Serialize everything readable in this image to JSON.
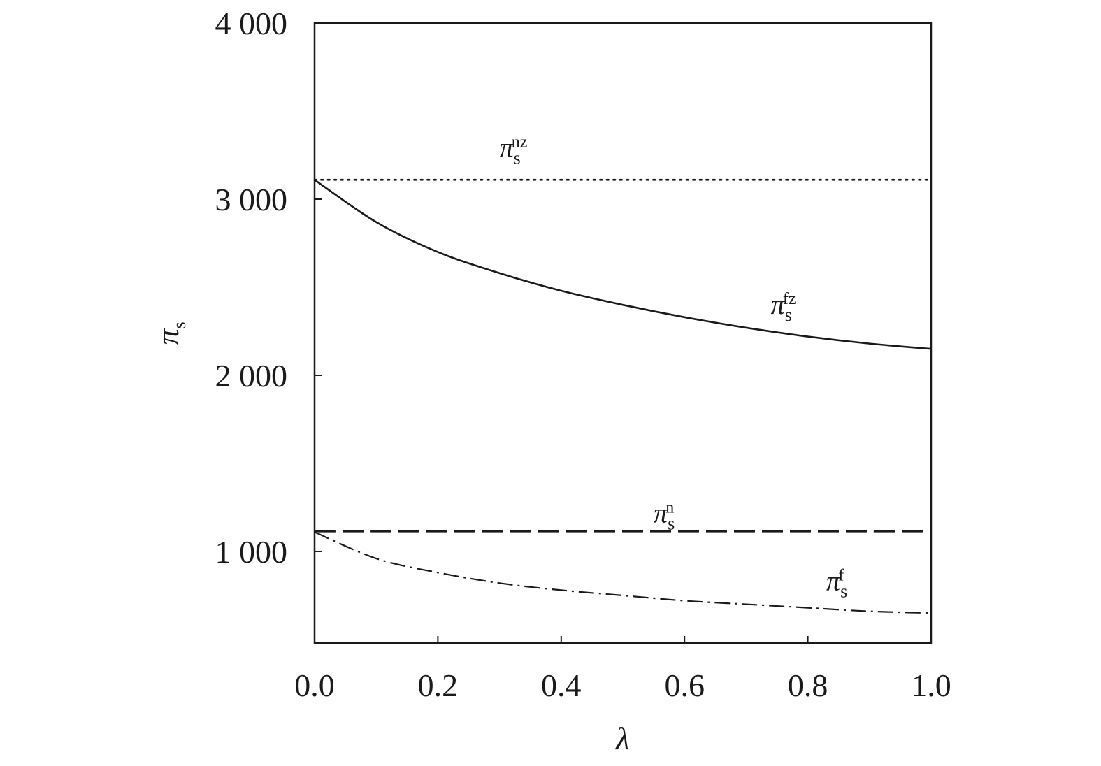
{
  "chart_data": {
    "type": "line",
    "xlabel": "λ",
    "ylabel": {
      "symbol": "π",
      "sub": "s"
    },
    "xlim": [
      0,
      1
    ],
    "ylim": [
      480,
      4000
    ],
    "x_ticks": [
      0,
      0.2,
      0.4,
      0.6,
      0.8,
      1.0
    ],
    "x_tick_labels": [
      "0.0",
      "0.2",
      "0.4",
      "0.6",
      "0.8",
      "1.0"
    ],
    "y_ticks": [
      1000,
      2000,
      3000,
      4000
    ],
    "y_tick_labels": [
      "1 000",
      "2 000",
      "3 000",
      "4 000"
    ],
    "grid": false,
    "legend": "inline-labels",
    "x": [
      0,
      0.1,
      0.2,
      0.3,
      0.4,
      0.5,
      0.6,
      0.7,
      0.8,
      0.9,
      1.0
    ],
    "series": [
      {
        "name": {
          "symbol": "π",
          "sub": "s",
          "sup": "nz"
        },
        "style": "dotted",
        "values": [
          3110,
          3110,
          3110,
          3110,
          3110,
          3110,
          3110,
          3110,
          3110,
          3110,
          3110
        ],
        "label_at": [
          0.3,
          3240
        ]
      },
      {
        "name": {
          "symbol": "π",
          "sub": "s",
          "sup": "fz"
        },
        "style": "solid",
        "values": [
          3110,
          2870,
          2700,
          2580,
          2480,
          2400,
          2330,
          2270,
          2220,
          2180,
          2150
        ],
        "label_at": [
          0.74,
          2350
        ]
      },
      {
        "name": {
          "symbol": "π",
          "sub": "s",
          "sup": "n"
        },
        "style": "dashed",
        "values": [
          1115,
          1115,
          1115,
          1115,
          1115,
          1115,
          1115,
          1115,
          1115,
          1115,
          1115
        ],
        "label_at": [
          0.55,
          1165
        ]
      },
      {
        "name": {
          "symbol": "π",
          "sub": "s",
          "sup": "f"
        },
        "style": "dashdot",
        "values": [
          1110,
          960,
          880,
          820,
          780,
          750,
          720,
          700,
          680,
          660,
          650
        ],
        "label_at": [
          0.83,
          780
        ]
      }
    ]
  }
}
